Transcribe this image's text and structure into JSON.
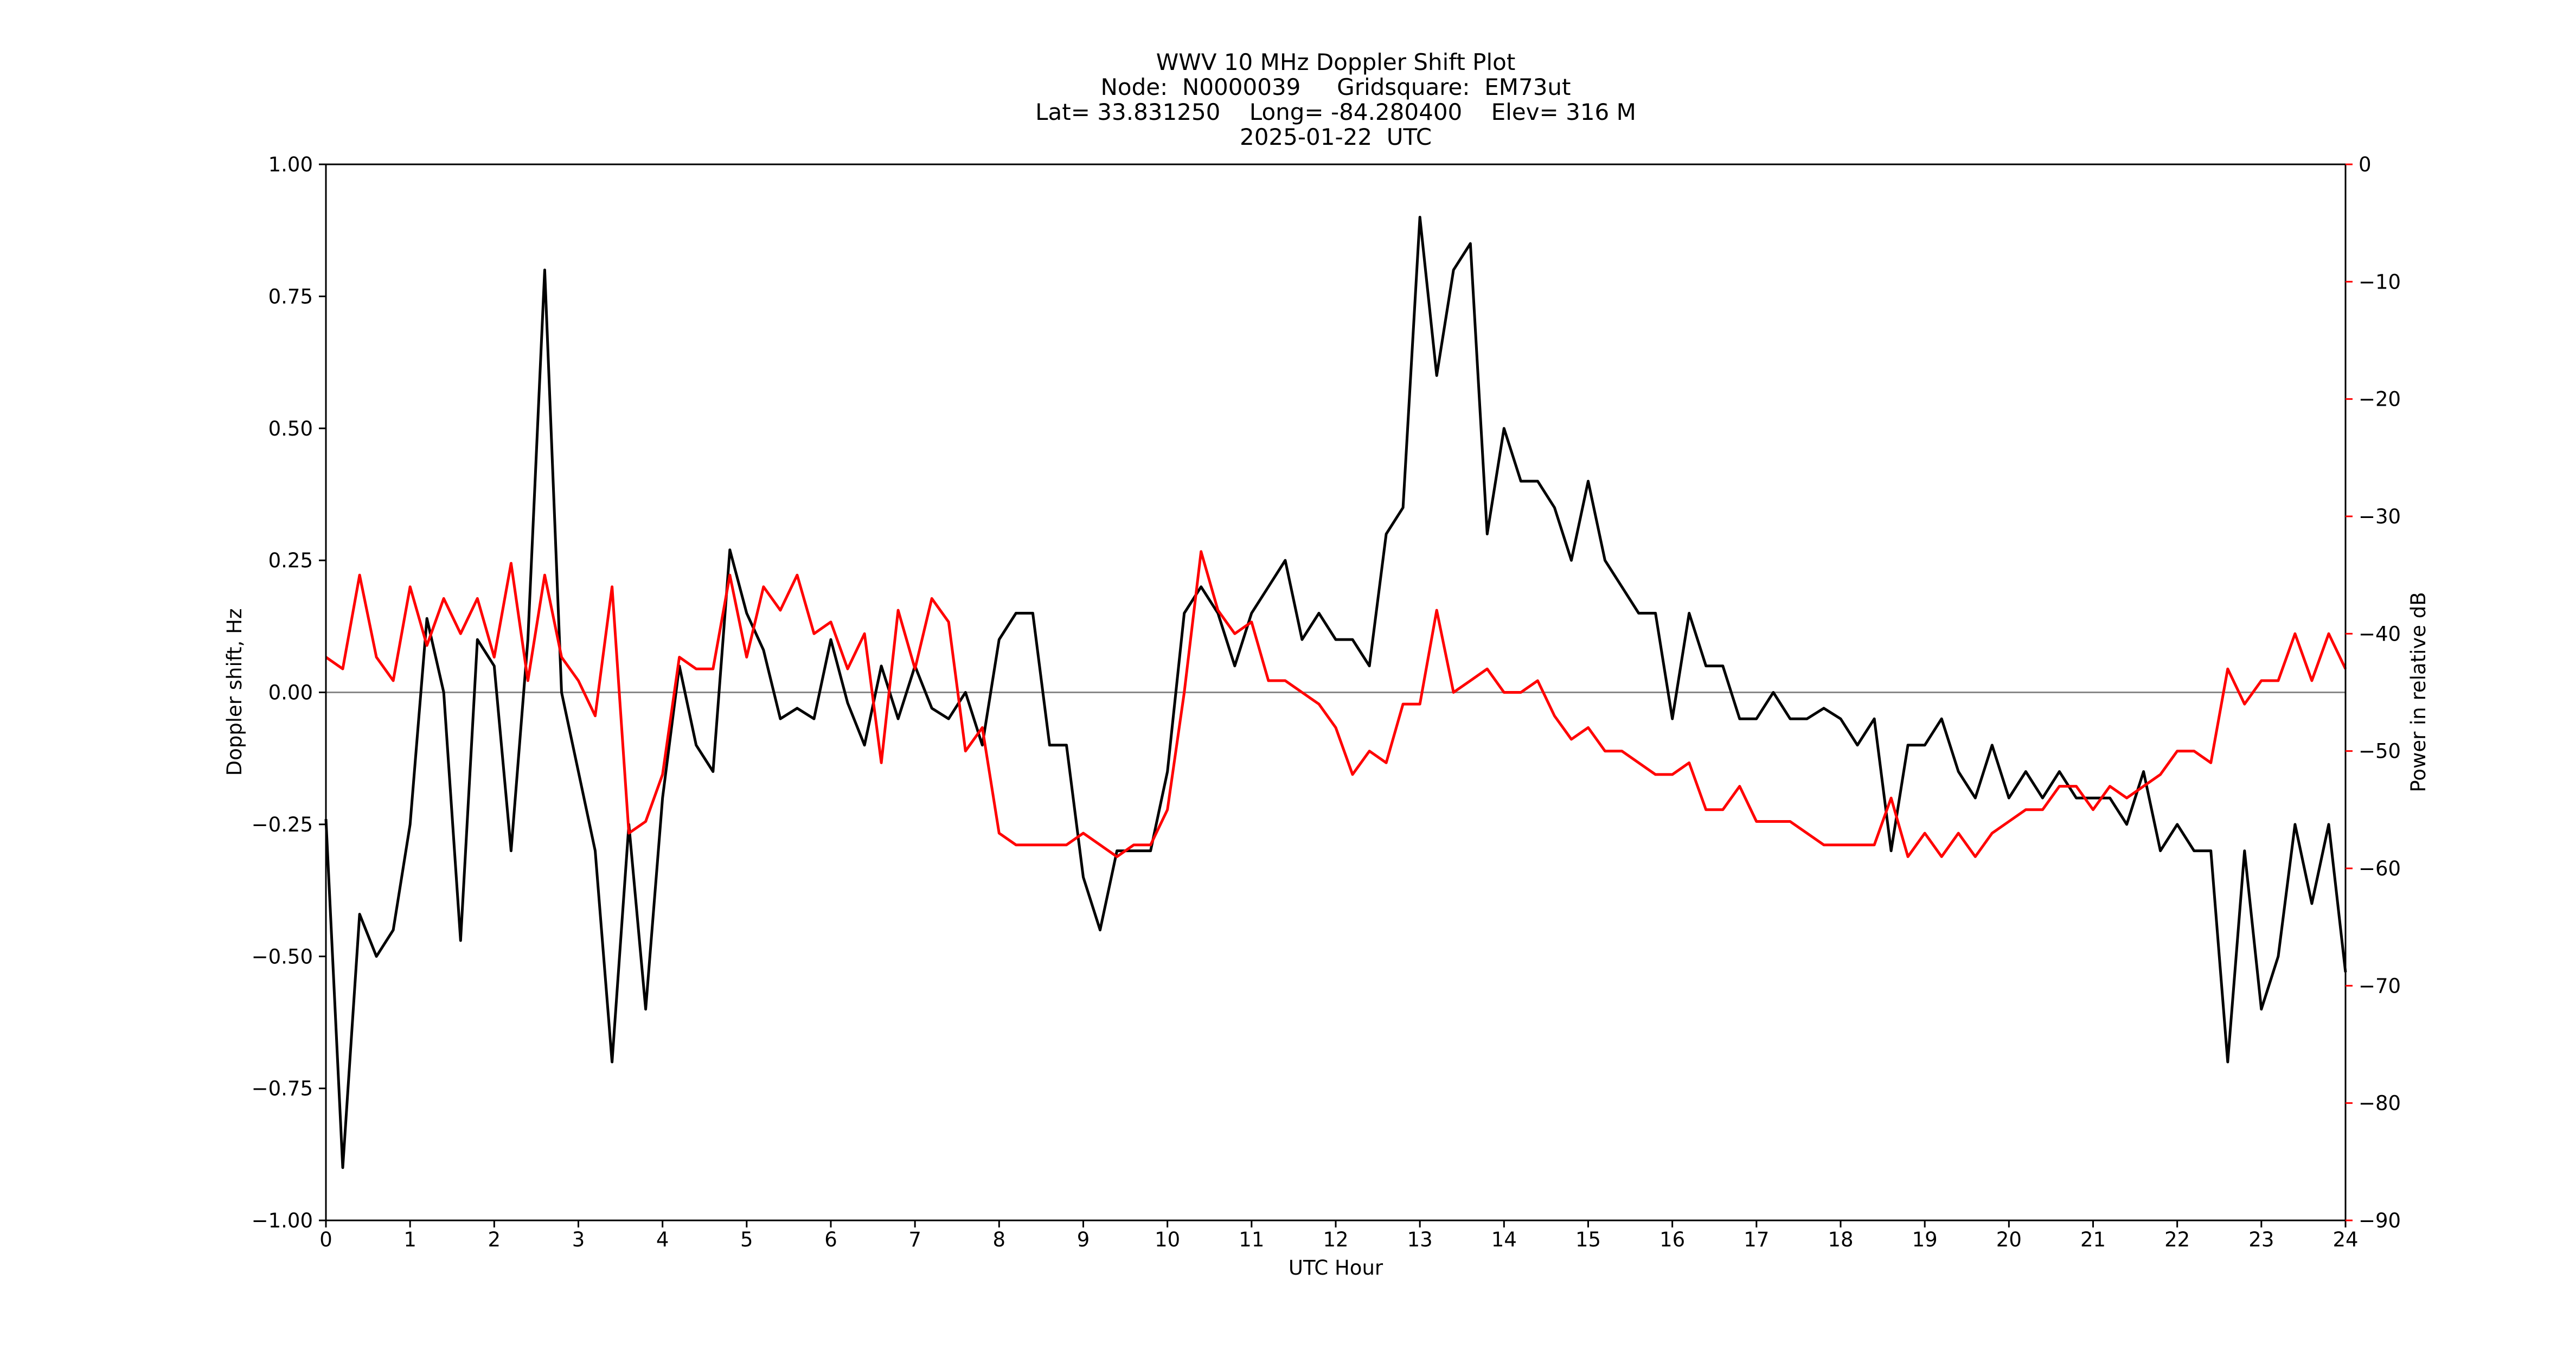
{
  "chart_data": {
    "type": "line",
    "title": [
      "WWV 10 MHz Doppler Shift Plot",
      "Node:  N0000039     Gridsquare:  EM73ut",
      "Lat= 33.831250    Long= -84.280400    Elev= 316 M",
      "2025-01-22  UTC"
    ],
    "xlabel": "UTC Hour",
    "ylabel": "Doppler shift, Hz",
    "y2label": "Power in relative dB",
    "y2color": "#ff0000",
    "axhline": 0,
    "axhline_color": "#888888",
    "xlim": [
      0,
      24
    ],
    "xticks": [
      0,
      1,
      2,
      3,
      4,
      5,
      6,
      7,
      8,
      9,
      10,
      11,
      12,
      13,
      14,
      15,
      16,
      17,
      18,
      19,
      20,
      21,
      22,
      23,
      24
    ],
    "ylim": [
      -1,
      1
    ],
    "yticks": [
      {
        "value": -1,
        "label": "−1.00"
      },
      {
        "value": -0.75,
        "label": "−0.75"
      },
      {
        "value": -0.5,
        "label": "−0.50"
      },
      {
        "value": -0.25,
        "label": "−0.25"
      },
      {
        "value": 0,
        "label": "0.00"
      },
      {
        "value": 0.25,
        "label": "0.25"
      },
      {
        "value": 0.5,
        "label": "0.50"
      },
      {
        "value": 0.75,
        "label": "0.75"
      },
      {
        "value": 1,
        "label": "1.00"
      }
    ],
    "y2lim": [
      -90,
      0
    ],
    "y2ticks": [
      {
        "value": -90,
        "label": "−90"
      },
      {
        "value": -80,
        "label": "−80"
      },
      {
        "value": -70,
        "label": "−70"
      },
      {
        "value": -60,
        "label": "−60"
      },
      {
        "value": -50,
        "label": "−50"
      },
      {
        "value": -40,
        "label": "−40"
      },
      {
        "value": -30,
        "label": "−30"
      },
      {
        "value": -20,
        "label": "−20"
      },
      {
        "value": -10,
        "label": "−10"
      },
      0
    ],
    "x": [
      0,
      0.2,
      0.4,
      0.6,
      0.8,
      1,
      1.2,
      1.4,
      1.6,
      1.8,
      2,
      2.2,
      2.4,
      2.6,
      2.8,
      3,
      3.2,
      3.4,
      3.6,
      3.8,
      4,
      4.2,
      4.4,
      4.6,
      4.8,
      5,
      5.2,
      5.4,
      5.6,
      5.8,
      6,
      6.2,
      6.4,
      6.6,
      6.8,
      7,
      7.2,
      7.4,
      7.6,
      7.8,
      8,
      8.2,
      8.4,
      8.6,
      8.8,
      9,
      9.2,
      9.4,
      9.6,
      9.8,
      10,
      10.2,
      10.4,
      10.6,
      10.8,
      11,
      11.2,
      11.4,
      11.6,
      11.8,
      12,
      12.2,
      12.4,
      12.6,
      12.8,
      13,
      13.2,
      13.4,
      13.6,
      13.8,
      14,
      14.2,
      14.4,
      14.6,
      14.8,
      15,
      15.2,
      15.4,
      15.6,
      15.8,
      16,
      16.2,
      16.4,
      16.6,
      16.8,
      17,
      17.2,
      17.4,
      17.6,
      17.8,
      18,
      18.2,
      18.4,
      18.6,
      18.8,
      19,
      19.2,
      19.4,
      19.6,
      19.8,
      20,
      20.2,
      20.4,
      20.6,
      20.8,
      21,
      21.2,
      21.4,
      21.6,
      21.8,
      22,
      22.2,
      22.4,
      22.6,
      22.8,
      23,
      23.2,
      23.4,
      23.6,
      23.8,
      24
    ],
    "series": [
      {
        "color": "#000000",
        "values": [
          -0.24,
          -0.9,
          -0.42,
          -0.5,
          -0.45,
          -0.25,
          0.14,
          0,
          -0.47,
          0.1,
          0.05,
          -0.3,
          0.1,
          0.8,
          0,
          -0.15,
          -0.3,
          -0.7,
          -0.25,
          -0.6,
          -0.2,
          0.05,
          -0.1,
          -0.15,
          0.27,
          0.15,
          0.08,
          -0.05,
          -0.03,
          -0.05,
          0.1,
          -0.02,
          -0.1,
          0.05,
          -0.05,
          0.05,
          -0.03,
          -0.05,
          0,
          -0.1,
          0.1,
          0.15,
          0.15,
          -0.1,
          -0.1,
          -0.35,
          -0.45,
          -0.3,
          -0.3,
          -0.3,
          -0.15,
          0.15,
          0.2,
          0.15,
          0.05,
          0.15,
          0.2,
          0.25,
          0.1,
          0.15,
          0.1,
          0.1,
          0.05,
          0.3,
          0.35,
          0.9,
          0.6,
          0.8,
          0.85,
          0.3,
          0.5,
          0.4,
          0.4,
          0.35,
          0.25,
          0.4,
          0.25,
          0.2,
          0.15,
          0.15,
          -0.05,
          0.15,
          0.05,
          0.05,
          -0.05,
          -0.05,
          0,
          -0.05,
          -0.05,
          -0.03,
          -0.05,
          -0.1,
          -0.05,
          -0.3,
          -0.1,
          -0.1,
          -0.05,
          -0.15,
          -0.2,
          -0.1,
          -0.2,
          -0.15,
          -0.2,
          -0.15,
          -0.2,
          -0.2,
          -0.2,
          -0.25,
          -0.15,
          -0.3,
          -0.25,
          -0.3,
          -0.3,
          -0.7,
          -0.3,
          -0.6,
          -0.5,
          -0.25,
          -0.4,
          -0.25,
          -0.53
        ]
      },
      {
        "color": "#ff0000",
        "axis": "y2",
        "values": [
          -42,
          -43,
          -35,
          -42,
          -44,
          -36,
          -41,
          -37,
          -40,
          -37,
          -42,
          -34,
          -44,
          -35,
          -42,
          -44,
          -47,
          -36,
          -57,
          -56,
          -52,
          -42,
          -43,
          -43,
          -35,
          -42,
          -36,
          -38,
          -35,
          -40,
          -39,
          -43,
          -40,
          -51,
          -38,
          -43,
          -37,
          -39,
          -50,
          -48,
          -57,
          -58,
          -58,
          -58,
          -58,
          -57,
          -58,
          -59,
          -58,
          -58,
          -55,
          -45,
          -33,
          -38,
          -40,
          -39,
          -44,
          -44,
          -45,
          -46,
          -48,
          -52,
          -50,
          -51,
          -46,
          -46,
          -38,
          -45,
          -44,
          -43,
          -45,
          -45,
          -44,
          -47,
          -49,
          -48,
          -50,
          -50,
          -51,
          -52,
          -52,
          -51,
          -55,
          -55,
          -53,
          -56,
          -56,
          -56,
          -57,
          -58,
          -58,
          -58,
          -58,
          -54,
          -59,
          -57,
          -59,
          -57,
          -59,
          -57,
          -56,
          -55,
          -55,
          -53,
          -53,
          -55,
          -53,
          -54,
          -53,
          -52,
          -50,
          -50,
          -51,
          -43,
          -46,
          -44,
          -44,
          -40,
          -44,
          -40,
          -43
        ]
      }
    ]
  }
}
